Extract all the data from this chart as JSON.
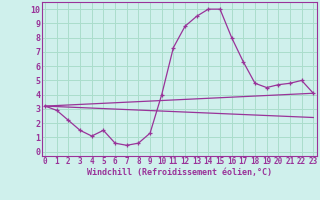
{
  "xlabel": "Windchill (Refroidissement éolien,°C)",
  "background_color": "#cff0ec",
  "grid_color": "#aaddcc",
  "line_color": "#993399",
  "x_ticks": [
    0,
    1,
    2,
    3,
    4,
    5,
    6,
    7,
    8,
    9,
    10,
    11,
    12,
    13,
    14,
    15,
    16,
    17,
    18,
    19,
    20,
    21,
    22,
    23
  ],
  "y_ticks": [
    0,
    1,
    2,
    3,
    4,
    5,
    6,
    7,
    8,
    9,
    10
  ],
  "xlim": [
    -0.3,
    23.3
  ],
  "ylim": [
    -0.3,
    10.5
  ],
  "line1_x": [
    0,
    1,
    2,
    3,
    4,
    5,
    6,
    7,
    8,
    9,
    10,
    11,
    12,
    13,
    14,
    15,
    16,
    17,
    18,
    19,
    20,
    21,
    22,
    23
  ],
  "line1_y": [
    3.2,
    2.9,
    2.2,
    1.5,
    1.1,
    1.5,
    0.6,
    0.45,
    0.6,
    1.3,
    4.0,
    7.3,
    8.8,
    9.5,
    10.0,
    10.0,
    8.0,
    6.3,
    4.8,
    4.5,
    4.7,
    4.8,
    5.0,
    4.1
  ],
  "line2_x": [
    0,
    23
  ],
  "line2_y": [
    3.2,
    4.1
  ],
  "line3_x": [
    0,
    23
  ],
  "line3_y": [
    3.2,
    2.4
  ],
  "spine_color": "#993399",
  "tick_fontsize": 5.5,
  "xlabel_fontsize": 6.0
}
